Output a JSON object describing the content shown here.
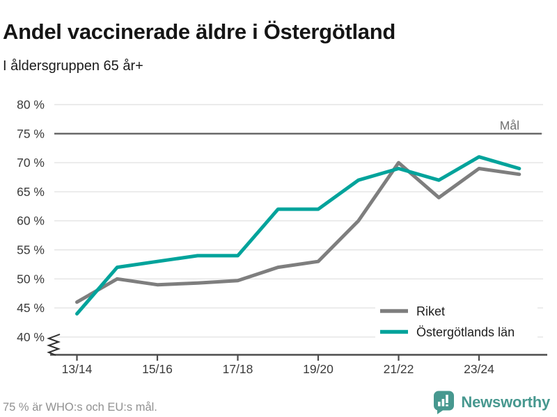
{
  "header": {
    "title": "Andel vaccinerade äldre i Östergötland",
    "subtitle": "I åldersgruppen 65 år+"
  },
  "chart_data": {
    "type": "line",
    "categories": [
      "13/14",
      "14/15",
      "15/16",
      "16/17",
      "17/18",
      "18/19",
      "19/20",
      "20/21",
      "21/22",
      "22/23",
      "23/24",
      "24/25"
    ],
    "x_tick_labels": [
      "13/14",
      "15/16",
      "17/18",
      "19/20",
      "21/22",
      "23/24"
    ],
    "series": [
      {
        "name": "Riket",
        "color": "#7e7e7e",
        "values": [
          46,
          50,
          49,
          49.3,
          49.7,
          52,
          53,
          60,
          70,
          64,
          69,
          68
        ]
      },
      {
        "name": "Östergötlands län",
        "color": "#00a39b",
        "values": [
          44,
          52,
          53,
          54,
          54,
          62,
          62,
          67,
          69,
          67,
          71,
          69
        ]
      }
    ],
    "ylim": [
      40,
      80
    ],
    "yticks": [
      40,
      45,
      50,
      55,
      60,
      65,
      70,
      75,
      80
    ],
    "ytick_suffix": " %",
    "goal_line": {
      "value": 75,
      "label": "Mål"
    },
    "axis_break": true,
    "grid": true,
    "legend_position": "bottom-right",
    "colors": {
      "grid": "#e4e4e4",
      "axis": "#4c4c4c",
      "goal": "#6f6f6f",
      "tick_text": "#3b3b3b",
      "legend_text": "#1d1d1d"
    }
  },
  "footer": {
    "note": "75 % är WHO:s och EU:s mål.",
    "brand": "Newsworthy"
  }
}
